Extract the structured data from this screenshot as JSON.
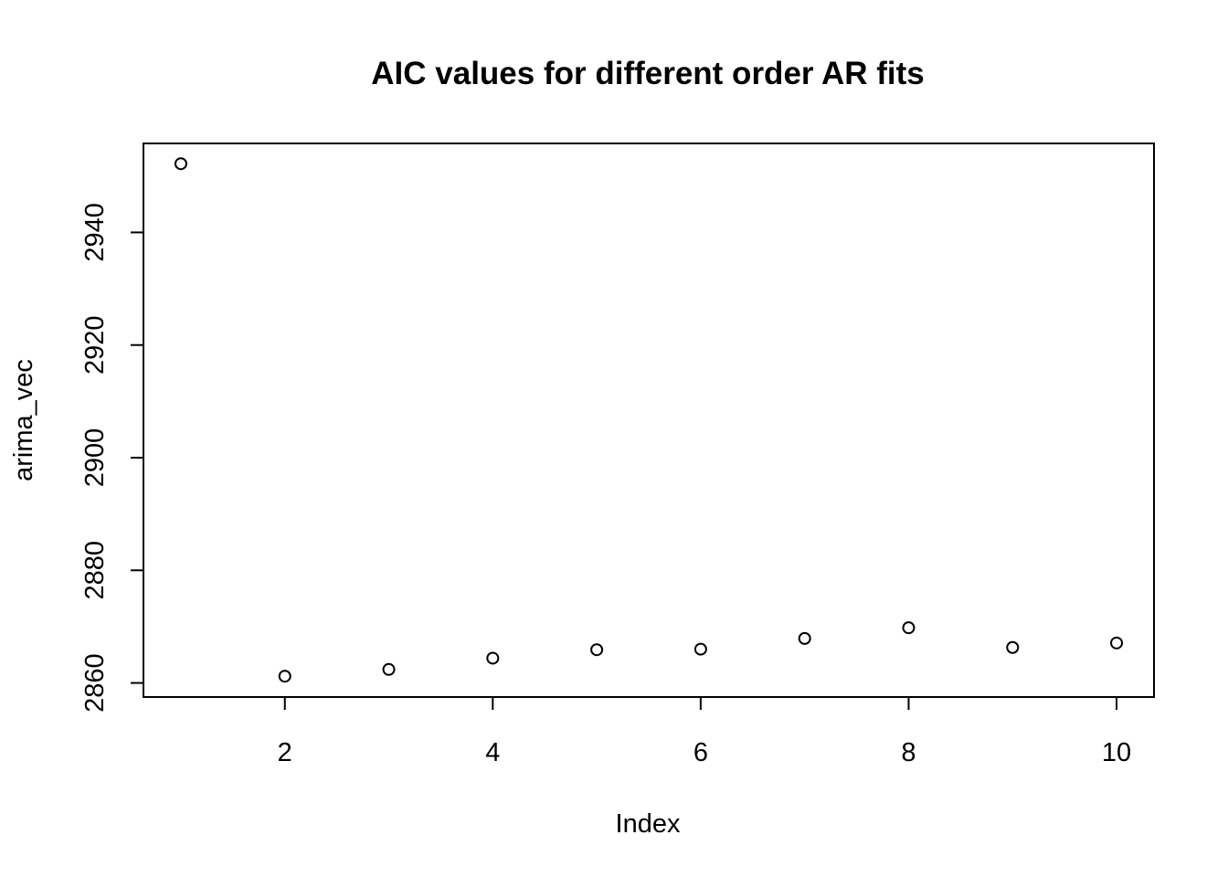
{
  "chart_data": {
    "type": "scatter",
    "title": "AIC values for different order AR fits",
    "xlabel": "Index",
    "ylabel": "arima_vec",
    "xlim": [
      0.64,
      10.36
    ],
    "ylim": [
      2857.5,
      2955.8
    ],
    "x_ticks": [
      "2",
      "4",
      "6",
      "8",
      "10"
    ],
    "y_ticks": [
      "2860",
      "2880",
      "2900",
      "2920",
      "2940"
    ],
    "grid": false,
    "legend": "none",
    "marker": "open-circle",
    "x": [
      1,
      2,
      3,
      4,
      5,
      6,
      7,
      8,
      9,
      10
    ],
    "y": [
      2952.2,
      2861.2,
      2862.4,
      2864.4,
      2865.9,
      2866.0,
      2867.9,
      2869.8,
      2866.3,
      2867.1
    ],
    "colors": {
      "points": "#000000",
      "axes": "#000000",
      "background": "#ffffff"
    }
  }
}
